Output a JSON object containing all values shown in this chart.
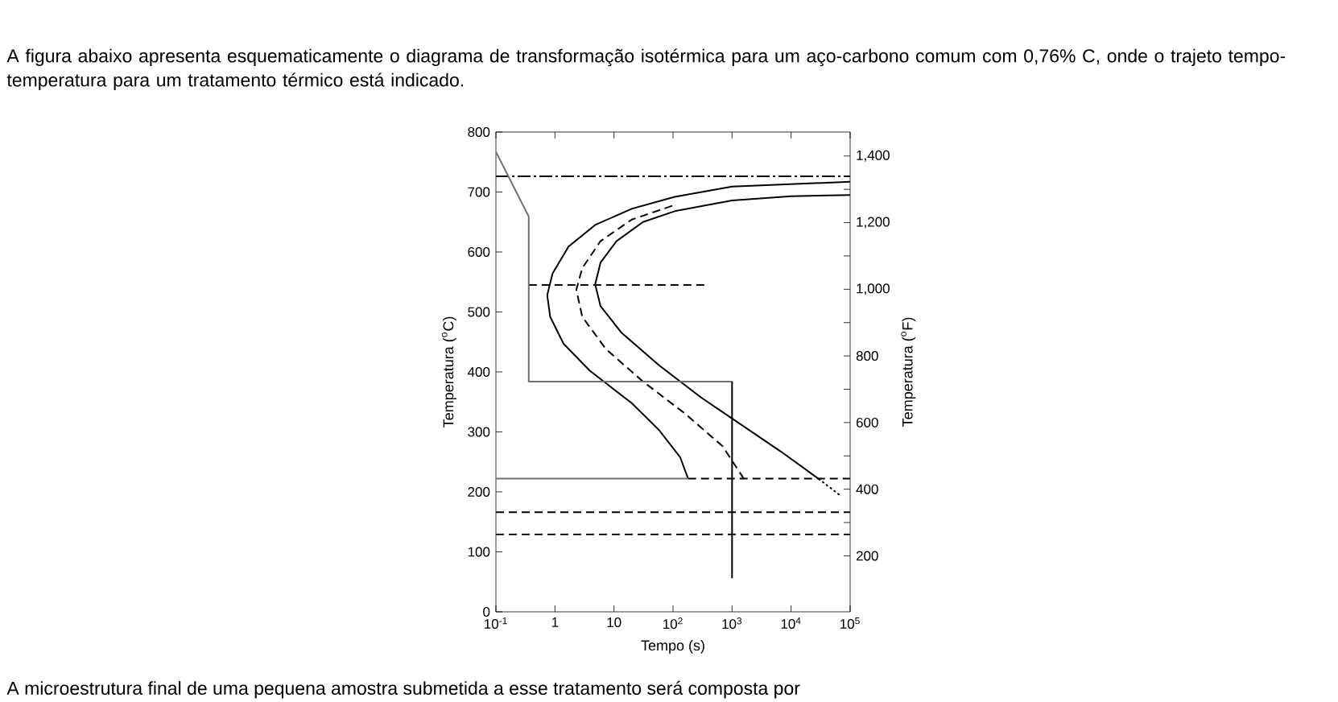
{
  "chart_data": {
    "type": "line",
    "title": "A figura abaixo apresenta esquematicamente o diagrama de transformação isotérmica para um aço-carbono comum com 0,76% C, onde o trajeto tempo-temperatura para um tratamento térmico está indicado.",
    "xlabel": "Tempo (s)",
    "ylabel": "Temperatura ($^{o}$C)",
    "y2label": "Temperatura ($^{o}$F)",
    "annotations": [
      "A microestrutura final de uma pequena amostra submetida a esse tratamento será composta por"
    ],
    "log": "x",
    "marker": "none",
    "grid": false,
    "legend": false,
    "xlim": [
      0.1,
      100000
    ],
    "ylim": [
      0,
      800
    ],
    "y2lim": [
      32,
      1472
    ],
    "xticks": [
      {
        "value": 0.1,
        "label": "10$^{-1}$"
      },
      1,
      10,
      {
        "value": 100,
        "label": "10$^{2}$"
      },
      {
        "value": 1000,
        "label": "10$^{3}$"
      },
      {
        "value": 10000,
        "label": "10$^{4}$"
      },
      {
        "value": 100000,
        "label": "10$^{5}$"
      }
    ],
    "yticks": [
      0,
      100,
      200,
      300,
      400,
      500,
      600,
      700,
      800
    ],
    "y2ticks": [
      {
        "value": 200,
        "label": "200"
      },
      {
        "value": 300,
        "label": null
      },
      {
        "value": 400,
        "label": "400"
      },
      {
        "value": 500,
        "label": null
      },
      {
        "value": 600,
        "label": "600"
      },
      {
        "value": 700,
        "label": null
      },
      {
        "value": 800,
        "label": "800"
      },
      {
        "value": 900,
        "label": null
      },
      {
        "value": 1000,
        "label": "1,000"
      },
      {
        "value": 1100,
        "label": null
      },
      {
        "value": 1200,
        "label": "1,200"
      },
      {
        "value": 1300,
        "label": null
      },
      {
        "value": 1400,
        "label": "1,400"
      }
    ],
    "series": [
      {
        "color": "#000000",
        "line_style": "solid",
        "x": [
          100000,
          1000,
          107,
          20,
          4.8,
          1.7,
          0.91,
          0.74,
          0.83,
          1.4,
          3.9,
          20,
          58,
          132,
          180
        ],
        "values": [
          717,
          709,
          692,
          672,
          645,
          609,
          564,
          528,
          492,
          447,
          402,
          348,
          303,
          258,
          222
        ]
      },
      {
        "color": "#000000",
        "line_style": "solid",
        "x": [
          100000,
          10000,
          1000,
          107,
          31,
          11,
          5.9,
          4.8,
          5.9,
          13.5,
          58,
          302,
          1050,
          6760,
          29000
        ],
        "values": [
          695,
          693,
          686,
          668,
          650,
          618,
          582,
          546,
          510,
          465,
          411,
          357,
          321,
          267,
          222
        ]
      },
      {
        "color": "#000000",
        "line_style": "dotted",
        "x": [
          29000,
          66000
        ],
        "values": [
          222,
          195
        ]
      },
      {
        "color": "#000000",
        "line_style": "dashed",
        "x": [
          97,
          20,
          5.9,
          2.9,
          2.3,
          2.9,
          7.3,
          31,
          162,
          692,
          1580
        ],
        "values": [
          677,
          654,
          618,
          573,
          537,
          492,
          438,
          384,
          330,
          276,
          222
        ]
      },
      {
        "color": "#000000",
        "line_style": "dashdot",
        "x": [
          0.1,
          100000
        ],
        "values": [
          726,
          726
        ]
      },
      {
        "color": "#000000",
        "line_style": "dashed",
        "x": [
          0.36,
          372
        ],
        "values": [
          545,
          545
        ]
      },
      {
        "color": "#000000",
        "line_style": "dashed",
        "x": [
          180,
          100000
        ],
        "values": [
          222,
          222
        ]
      },
      {
        "color": "#000000",
        "line_style": "dashed",
        "x": [
          0.1,
          100000
        ],
        "values": [
          166,
          166
        ]
      },
      {
        "color": "#000000",
        "line_style": "dashed",
        "x": [
          0.1,
          100000
        ],
        "values": [
          129,
          129
        ]
      },
      {
        "color": "#707070",
        "line_style": "solid",
        "x": [
          0.1,
          180
        ],
        "values": [
          222,
          222
        ]
      },
      {
        "color": "#707070",
        "line_style": "solid",
        "x": [
          0.1,
          0.36,
          0.36,
          1000,
          1000
        ],
        "values": [
          767,
          659,
          384,
          384,
          384
        ]
      },
      {
        "color": "#000000",
        "line_style": "solid",
        "x": [
          1000,
          1000
        ],
        "values": [
          384,
          56
        ]
      }
    ]
  }
}
